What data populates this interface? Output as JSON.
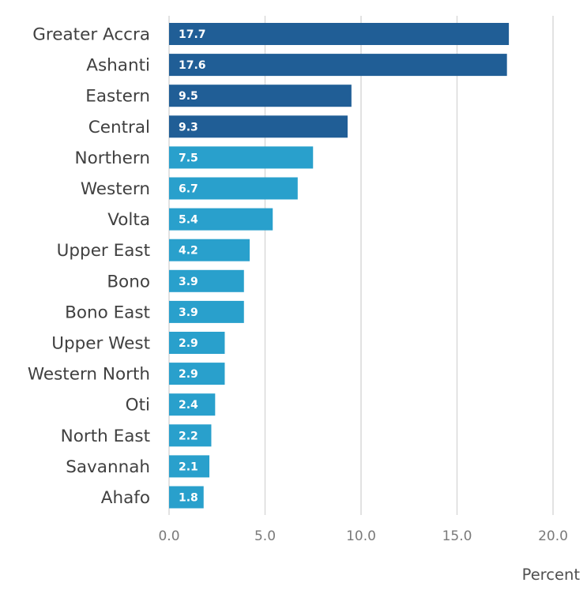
{
  "chart_data": {
    "type": "bar",
    "orientation": "horizontal",
    "categories": [
      "Greater Accra",
      "Ashanti",
      "Eastern",
      "Central",
      "Northern",
      "Western",
      "Volta",
      "Upper East",
      "Bono",
      "Bono East",
      "Upper West",
      "Western North",
      "Oti",
      "North East",
      "Savannah",
      "Ahafo"
    ],
    "values": [
      17.7,
      17.6,
      9.5,
      9.3,
      7.5,
      6.7,
      5.4,
      4.2,
      3.9,
      3.9,
      2.9,
      2.9,
      2.4,
      2.2,
      2.1,
      1.8
    ],
    "data_labels": [
      "17.7",
      "17.6",
      "9.5",
      "9.3",
      "7.5",
      "6.7",
      "5.4",
      "4.2",
      "3.9",
      "3.9",
      "2.9",
      "2.9",
      "2.4",
      "2.2",
      "2.1",
      "1.8"
    ],
    "title": "",
    "xlabel": "Percent",
    "ylabel": "",
    "xlim": [
      0,
      20
    ],
    "xticks": [
      0,
      5,
      10,
      15,
      20
    ],
    "xtick_labels": [
      "0.0",
      "5.0",
      "10.0",
      "15.0",
      "20.0"
    ],
    "grid": true,
    "legend": "none",
    "highlight_count": 4,
    "colors": {
      "highlight": "#205e96",
      "default": "#29a0cc",
      "gridline": "#d9d9d9",
      "data_label": "#ffffff"
    }
  }
}
